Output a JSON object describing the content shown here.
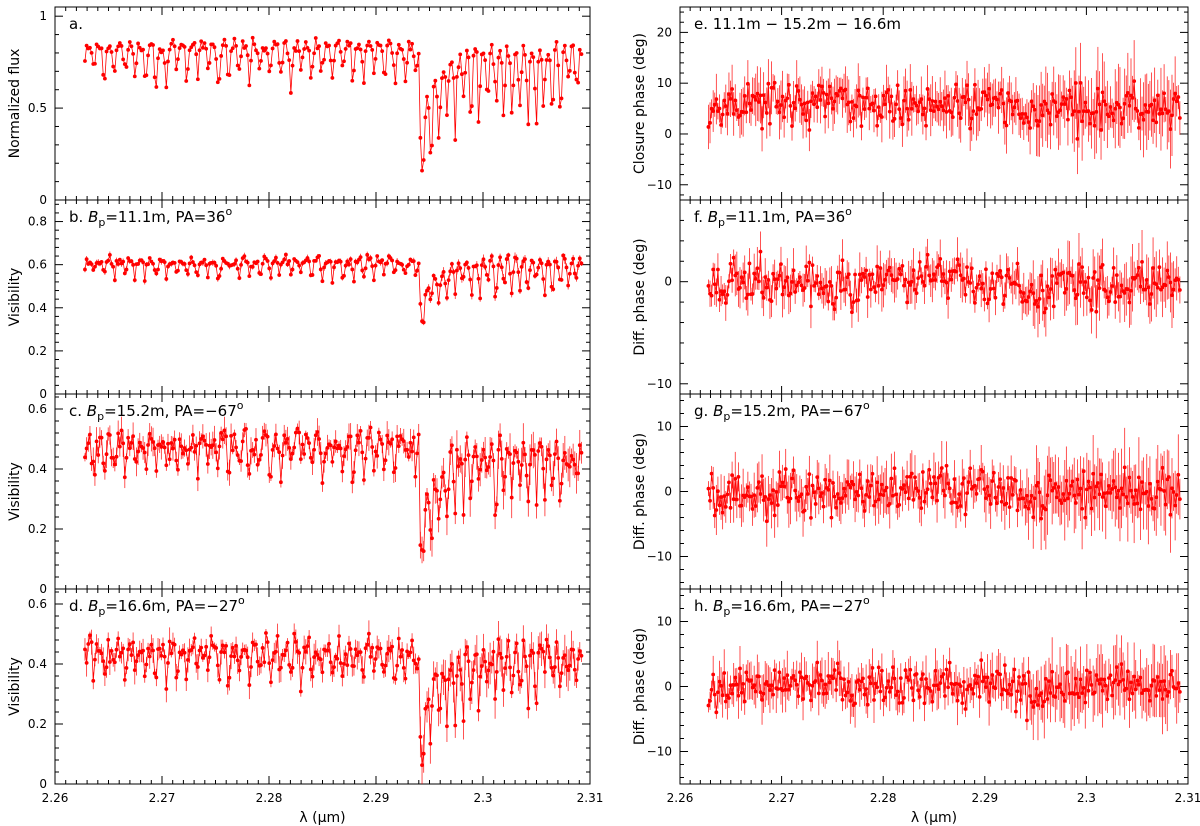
{
  "figure": {
    "xaxis_label": "λ (μm)",
    "x_tick_labels": [
      "2.26",
      "2.27",
      "2.28",
      "2.29",
      "2.3",
      "2.31"
    ],
    "series_color": "#ff0000"
  },
  "chart_data": [
    {
      "id": "a",
      "type": "line",
      "label": "a.",
      "ylabel": "Normalized flux",
      "ylim": [
        0,
        1.05
      ],
      "y_ticks": [
        0,
        0.5,
        1
      ],
      "y_tick_labels": [
        "0",
        "0.5",
        "1"
      ],
      "xlim": [
        2.26,
        2.31
      ],
      "x_range_data": [
        2.2628,
        2.3092
      ],
      "step": 2.294,
      "base_before": 0.84,
      "base_after": 0.82,
      "line_depth": 0.18,
      "post_step_low": 0.37,
      "noise": 0.02,
      "err": 0,
      "n_points": 300,
      "seed": 11
    },
    {
      "id": "b",
      "type": "line",
      "label": "b. B_p=11.1m, PA=36°",
      "label_parts": {
        "prefix": "b. ",
        "var": "B",
        "sub": "p",
        "mid": "=11.1m, PA=36",
        "sup": "o"
      },
      "ylabel": "Visibility",
      "ylim": [
        0,
        0.9
      ],
      "y_ticks": [
        0,
        0.2,
        0.4,
        0.6,
        0.8
      ],
      "y_tick_labels": [
        "0",
        "0.2",
        "0.4",
        "0.6",
        "0.8"
      ],
      "xlim": [
        2.26,
        2.31
      ],
      "x_range_data": [
        2.2628,
        2.3092
      ],
      "step": 2.294,
      "base_before": 0.62,
      "base_after": 0.62,
      "line_depth": 0.07,
      "post_step_low": 0.41,
      "noise": 0.012,
      "err": 0.01,
      "n_points": 300,
      "seed": 23
    },
    {
      "id": "c",
      "type": "line",
      "label": "c. B_p=15.2m, PA=−67°",
      "label_parts": {
        "prefix": "c. ",
        "var": "B",
        "sub": "p",
        "mid": "=15.2m, PA=−67",
        "sup": "o"
      },
      "ylabel": "Visibility",
      "ylim": [
        0,
        0.65
      ],
      "y_ticks": [
        0,
        0.2,
        0.4,
        0.6
      ],
      "y_tick_labels": [
        "0",
        "0.2",
        "0.4",
        "0.6"
      ],
      "xlim": [
        2.26,
        2.31
      ],
      "x_range_data": [
        2.2628,
        2.3092
      ],
      "step": 2.294,
      "base_before": 0.49,
      "base_after": 0.48,
      "line_depth": 0.09,
      "post_step_low": 0.17,
      "noise": 0.025,
      "err": 0.03,
      "n_points": 300,
      "seed": 37
    },
    {
      "id": "d",
      "type": "line",
      "label": "d. B_p=16.6m, PA=−27°",
      "label_parts": {
        "prefix": "d. ",
        "var": "B",
        "sub": "p",
        "mid": "=16.6m, PA=−27",
        "sup": "o"
      },
      "ylabel": "Visibility",
      "ylim": [
        0,
        0.65
      ],
      "y_ticks": [
        0,
        0.2,
        0.4,
        0.6
      ],
      "y_tick_labels": [
        "0",
        "0.2",
        "0.4",
        "0.6"
      ],
      "xlim": [
        2.26,
        2.31
      ],
      "x_range_data": [
        2.2628,
        2.3092
      ],
      "step": 2.294,
      "base_before": 0.45,
      "base_after": 0.45,
      "line_depth": 0.08,
      "post_step_low": 0.16,
      "noise": 0.022,
      "err": 0.03,
      "n_points": 300,
      "seed": 41
    },
    {
      "id": "e",
      "type": "line",
      "label": "e. 11.1m − 15.2m − 16.6m",
      "ylabel": "Closure phase (deg)",
      "ylim": [
        -13,
        25
      ],
      "y_ticks": [
        -10,
        0,
        10,
        20
      ],
      "y_tick_labels": [
        "−10",
        "0",
        "10",
        "20"
      ],
      "xlim": [
        2.26,
        2.31
      ],
      "x_range_data": [
        2.2628,
        2.3092
      ],
      "step": 2.294,
      "base_before": 6,
      "base_after": 5,
      "line_depth": 0,
      "post_step_low": 5,
      "noise": 2.2,
      "err": 3.5,
      "n_points": 300,
      "seed": 53
    },
    {
      "id": "f",
      "type": "line",
      "label": "f. B_p=11.1m, PA=36°",
      "label_parts": {
        "prefix": "f. ",
        "var": "B",
        "sub": "p",
        "mid": "=11.1m, PA=36",
        "sup": "o"
      },
      "ylabel": "Diff. phase (deg)",
      "ylim": [
        -11,
        8
      ],
      "y_ticks": [
        -10,
        0
      ],
      "y_tick_labels": [
        "−10",
        "0"
      ],
      "xlim": [
        2.26,
        2.31
      ],
      "x_range_data": [
        2.2628,
        2.3092
      ],
      "step": 2.294,
      "base_before": 0,
      "base_after": 0,
      "line_depth": 0,
      "post_step_low": 0,
      "noise": 1.1,
      "err": 1.4,
      "n_points": 300,
      "seed": 67
    },
    {
      "id": "g",
      "type": "line",
      "label": "g. B_p=15.2m, PA=−67°",
      "label_parts": {
        "prefix": "g. ",
        "var": "B",
        "sub": "p",
        "mid": "=15.2m, PA=−67",
        "sup": "o"
      },
      "ylabel": "Diff. phase (deg)",
      "ylim": [
        -15,
        15
      ],
      "y_ticks": [
        -10,
        0,
        10
      ],
      "y_tick_labels": [
        "−10",
        "0",
        "10"
      ],
      "xlim": [
        2.26,
        2.31
      ],
      "x_range_data": [
        2.2628,
        2.3092
      ],
      "step": 2.294,
      "base_before": 0,
      "base_after": 0,
      "line_depth": 0,
      "post_step_low": 0,
      "noise": 1.8,
      "err": 2.6,
      "n_points": 300,
      "seed": 79
    },
    {
      "id": "h",
      "type": "line",
      "label": "h. B_p=16.6m, PA=−27°",
      "label_parts": {
        "prefix": "h. ",
        "var": "B",
        "sub": "p",
        "mid": "=16.6m, PA=−27",
        "sup": "o"
      },
      "ylabel": "Diff. phase (deg)",
      "ylim": [
        -15,
        15
      ],
      "y_ticks": [
        -10,
        0,
        10
      ],
      "y_tick_labels": [
        "−10",
        "0",
        "10"
      ],
      "xlim": [
        2.26,
        2.31
      ],
      "x_range_data": [
        2.2628,
        2.3092
      ],
      "step": 2.294,
      "base_before": 0,
      "base_after": 0,
      "line_depth": 0,
      "post_step_low": 0,
      "noise": 1.6,
      "err": 2.4,
      "n_points": 300,
      "seed": 97
    }
  ]
}
